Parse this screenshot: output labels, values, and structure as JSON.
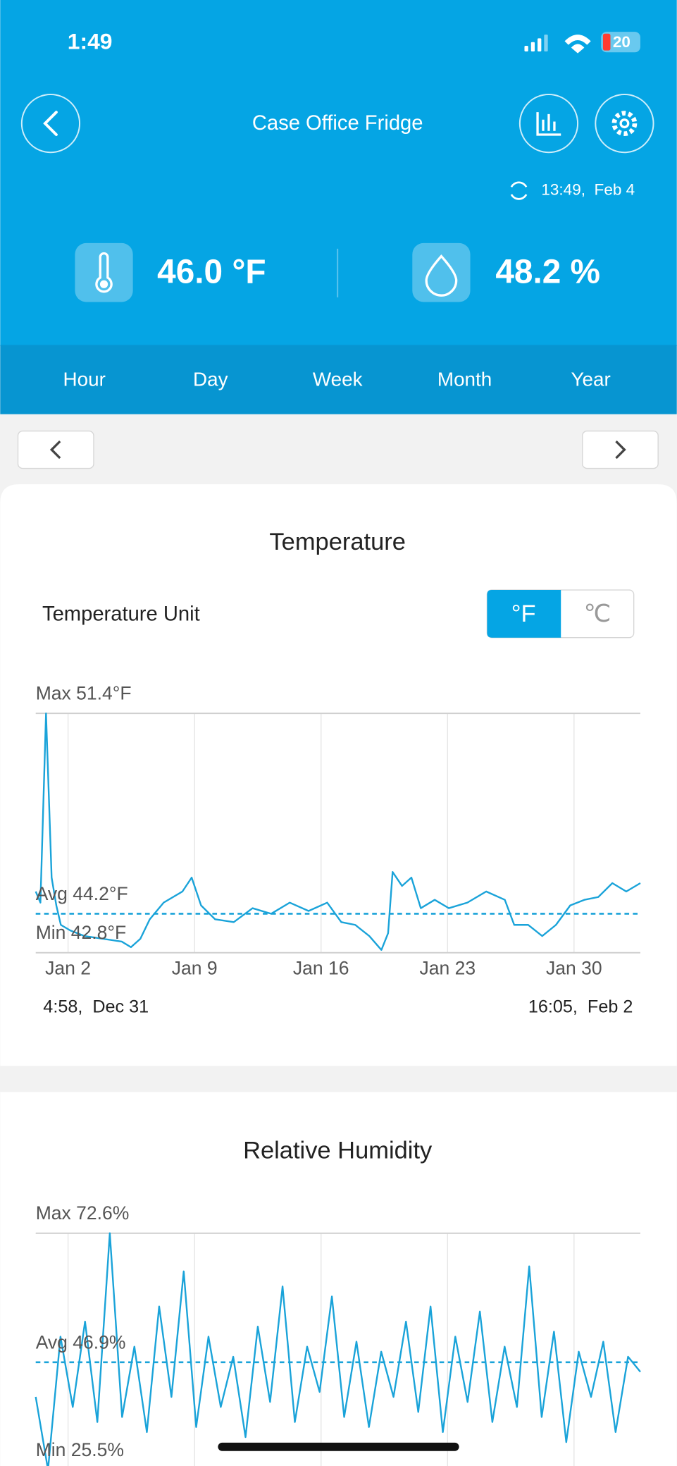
{
  "status_bar": {
    "time": "1:49",
    "battery": "20"
  },
  "header": {
    "title": "Case Office Fridge",
    "last_sync": "13:49,  Feb 4"
  },
  "readings": {
    "temperature": "46.0 °F",
    "humidity": "48.2 %"
  },
  "tabs": [
    "Hour",
    "Day",
    "Week",
    "Month",
    "Year"
  ],
  "temperature_panel": {
    "unit_label": "Temperature Unit",
    "unit_options": [
      "°F",
      "℃"
    ],
    "range_start": "4:58,  Dec 31",
    "range_end": "16:05,  Feb 2"
  },
  "chart_data": [
    {
      "type": "line",
      "title": "Temperature",
      "color": "#1aa3d9",
      "x": [
        0.21,
        0.47,
        0.78,
        1.09,
        1.35,
        1.6,
        2.12,
        2.9,
        3.93,
        4.97,
        5.48,
        6.0,
        6.52,
        7.29,
        8.33,
        8.84,
        9.36,
        10.14,
        11.17,
        12.21,
        13.24,
        14.27,
        15.31,
        16.34,
        17.12,
        17.89,
        18.67,
        19.34,
        19.71,
        19.96,
        20.48,
        21.0,
        21.52,
        22.29,
        23.07,
        24.1,
        25.14,
        26.17,
        26.69,
        27.46,
        28.24,
        29.0,
        29.79,
        30.57,
        31.34,
        32.12,
        32.89,
        33.67
      ],
      "values": [
        45.0,
        44.6,
        51.4,
        45.5,
        44.5,
        43.8,
        43.6,
        43.4,
        43.3,
        43.2,
        43.0,
        43.3,
        44.0,
        44.6,
        45.0,
        45.5,
        44.5,
        44.0,
        43.9,
        44.4,
        44.2,
        44.6,
        44.3,
        44.6,
        43.9,
        43.8,
        43.4,
        42.9,
        43.5,
        45.7,
        45.2,
        45.5,
        44.4,
        44.7,
        44.4,
        44.6,
        45.0,
        44.7,
        43.8,
        43.8,
        43.4,
        43.8,
        44.5,
        44.7,
        44.8,
        45.3,
        45.0,
        45.3
      ],
      "xlim": [
        0.21,
        33.67
      ],
      "xticks": [
        {
          "value": 2,
          "label": "Jan 2"
        },
        {
          "value": 9,
          "label": "Jan 9"
        },
        {
          "value": 16,
          "label": "Jan 16"
        },
        {
          "value": 23,
          "label": "Jan 23"
        },
        {
          "value": 30,
          "label": "Jan 30"
        }
      ],
      "ylim": [
        42.8,
        51.4
      ],
      "yticks": [
        {
          "value": 51.4,
          "label": "Max 51.4°F"
        },
        {
          "value": 44.2,
          "label": "Avg 44.2°F"
        },
        {
          "value": 42.8,
          "label": "Min 42.8°F"
        }
      ]
    },
    {
      "type": "line",
      "title": "Relative Humidity",
      "color": "#1aa3d9",
      "x": [
        0.21,
        0.89,
        1.58,
        2.26,
        2.94,
        3.62,
        4.31,
        4.99,
        5.67,
        6.36,
        7.04,
        7.72,
        8.4,
        9.09,
        9.77,
        10.45,
        11.14,
        11.82,
        12.5,
        13.18,
        13.87,
        14.55,
        15.23,
        15.92,
        16.6,
        17.28,
        17.96,
        18.65,
        19.33,
        20.01,
        20.7,
        21.38,
        22.06,
        22.74,
        23.43,
        24.11,
        24.79,
        25.48,
        26.16,
        26.84,
        27.52,
        28.21,
        28.89,
        29.57,
        30.26,
        30.94,
        31.62,
        32.3,
        32.99,
        33.67
      ],
      "values": [
        40,
        25.5,
        52,
        38,
        55,
        35,
        72.6,
        36,
        50,
        33,
        58,
        40,
        65,
        34,
        52,
        38,
        48,
        32,
        54,
        39,
        62,
        35,
        50,
        41,
        60,
        36,
        51,
        34,
        49,
        40,
        55,
        37,
        58,
        33,
        52,
        39,
        57,
        35,
        50,
        38,
        66,
        36,
        53,
        31,
        49,
        40,
        51,
        33,
        48,
        45
      ],
      "xlim": [
        0.21,
        33.67
      ],
      "xticks": [
        2,
        9,
        16,
        23,
        30
      ],
      "ylim": [
        25.5,
        72.6
      ],
      "yticks": [
        {
          "value": 72.6,
          "label": "Max 72.6%"
        },
        {
          "value": 46.9,
          "label": "Avg 46.9%"
        },
        {
          "value": 25.5,
          "label": "Min 25.5%"
        }
      ]
    }
  ]
}
